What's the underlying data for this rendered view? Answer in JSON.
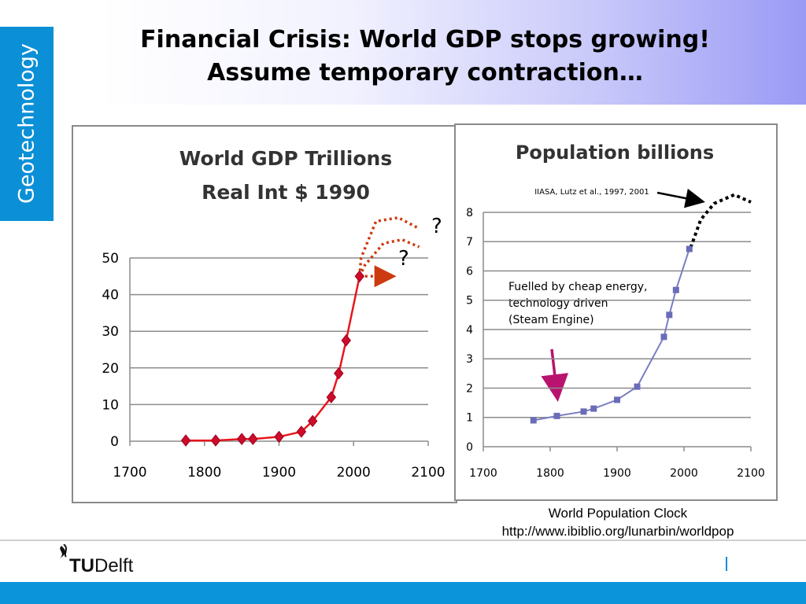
{
  "slide": {
    "side_tab": "Geotechnology",
    "title_line1": "Financial Crisis: World GDP stops growing!",
    "title_line2": "Assume temporary contraction…",
    "caption_line1": "World Population Clock",
    "caption_line2": "http://www.ibiblio.org/lunarbin/worldpop",
    "logo_tu": "TU",
    "logo_delft": "Delft"
  },
  "colors": {
    "accent": "#0b8fd6",
    "gdp_line": "#e8161b",
    "gdp_marker": "#cc0c2a",
    "projection": "#cc3a10",
    "pop_line": "#7b7dc3",
    "pop_marker": "#6a6cb8",
    "arrow": "#b8136e"
  },
  "chart_data": [
    {
      "type": "line",
      "title_line1": "World GDP Trillions",
      "title_line2": "Real Int $ 1990",
      "xlim": [
        1700,
        2100
      ],
      "ylim": [
        0,
        50
      ],
      "x_ticks": [
        1700,
        1800,
        1900,
        2000,
        2100
      ],
      "y_ticks": [
        0,
        10,
        20,
        30,
        40,
        50
      ],
      "grid": true,
      "series": [
        {
          "x": [
            1775,
            1815,
            1850,
            1865,
            1900,
            1930,
            1945,
            1970,
            1980,
            1990,
            2008
          ],
          "y": [
            0.2,
            0.2,
            0.6,
            0.6,
            1.2,
            2.6,
            5.5,
            12,
            18.5,
            27.5,
            45
          ]
        }
      ],
      "projections": [
        {
          "x": [
            2008,
            2010,
            2030,
            2060,
            2088
          ],
          "y": [
            45,
            50,
            60,
            61,
            58
          ]
        },
        {
          "x": [
            2008,
            2015,
            2040,
            2065,
            2088
          ],
          "y": [
            45,
            48,
            54,
            55,
            53
          ]
        },
        {
          "x": [
            2008,
            2050
          ],
          "y": [
            45,
            45
          ]
        }
      ],
      "annotations": [
        "?",
        "?"
      ]
    },
    {
      "type": "line",
      "title": "Population billions",
      "source_note": "IIASA, Lutz et al., 1997, 2001",
      "annotation_line1": "Fuelled by cheap energy,",
      "annotation_line2": "technology driven",
      "annotation_line3": "(Steam Engine)",
      "xlim": [
        1700,
        2100
      ],
      "ylim": [
        0,
        8
      ],
      "x_ticks": [
        1700,
        1800,
        1900,
        2000,
        2100
      ],
      "y_ticks": [
        0,
        1,
        2,
        3,
        4,
        5,
        6,
        7,
        8
      ],
      "grid": true,
      "series": [
        {
          "x": [
            1775,
            1810,
            1850,
            1865,
            1900,
            1930,
            1970,
            1978,
            1988,
            2008
          ],
          "y": [
            0.9,
            1.05,
            1.2,
            1.3,
            1.6,
            2.05,
            3.75,
            4.5,
            5.35,
            6.75
          ]
        }
      ],
      "projection": {
        "x": [
          2010,
          2025,
          2045,
          2075,
          2100
        ],
        "y": [
          6.8,
          7.75,
          8.3,
          8.6,
          8.35
        ]
      }
    }
  ]
}
